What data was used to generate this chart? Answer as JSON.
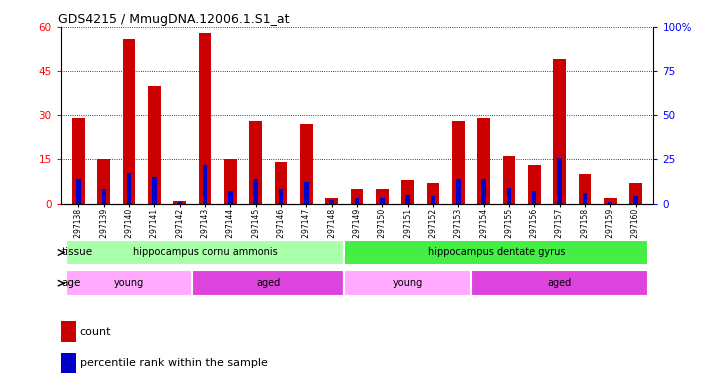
{
  "title": "GDS4215 / MmugDNA.12006.1.S1_at",
  "samples": [
    "GSM297138",
    "GSM297139",
    "GSM297140",
    "GSM297141",
    "GSM297142",
    "GSM297143",
    "GSM297144",
    "GSM297145",
    "GSM297146",
    "GSM297147",
    "GSM297148",
    "GSM297149",
    "GSM297150",
    "GSM297151",
    "GSM297152",
    "GSM297153",
    "GSM297154",
    "GSM297155",
    "GSM297156",
    "GSM297157",
    "GSM297158",
    "GSM297159",
    "GSM297160"
  ],
  "count_values": [
    29,
    15,
    56,
    40,
    1,
    58,
    15,
    28,
    14,
    27,
    2,
    5,
    5,
    8,
    7,
    28,
    29,
    16,
    13,
    49,
    10,
    2,
    7
  ],
  "percentile_values": [
    14,
    8,
    17,
    15,
    1,
    22,
    7,
    14,
    8,
    12,
    2,
    3,
    3,
    5,
    4,
    14,
    14,
    9,
    7,
    26,
    6,
    1,
    4
  ],
  "ylim_left": [
    0,
    60
  ],
  "ylim_right": [
    0,
    100
  ],
  "yticks_left": [
    0,
    15,
    30,
    45,
    60
  ],
  "yticks_right": [
    0,
    25,
    50,
    75,
    100
  ],
  "ytick_labels_right": [
    "0",
    "25",
    "50",
    "75",
    "100%"
  ],
  "bar_color": "#cc0000",
  "pct_color": "#0000cc",
  "tissue_groups": [
    {
      "label": "hippocampus cornu ammonis",
      "start": 0,
      "end": 11,
      "color": "#aaffaa"
    },
    {
      "label": "hippocampus dentate gyrus",
      "start": 11,
      "end": 23,
      "color": "#44ee44"
    }
  ],
  "age_groups": [
    {
      "label": "young",
      "start": 0,
      "end": 5,
      "color": "#ffaaff"
    },
    {
      "label": "aged",
      "start": 5,
      "end": 11,
      "color": "#dd44dd"
    },
    {
      "label": "young",
      "start": 11,
      "end": 16,
      "color": "#ffaaff"
    },
    {
      "label": "aged",
      "start": 16,
      "end": 23,
      "color": "#dd44dd"
    }
  ],
  "legend_count_color": "#cc0000",
  "legend_pct_color": "#0000cc",
  "legend_count_label": "count",
  "legend_pct_label": "percentile rank within the sample",
  "tissue_label": "tissue",
  "age_label": "age",
  "bar_width": 0.5
}
